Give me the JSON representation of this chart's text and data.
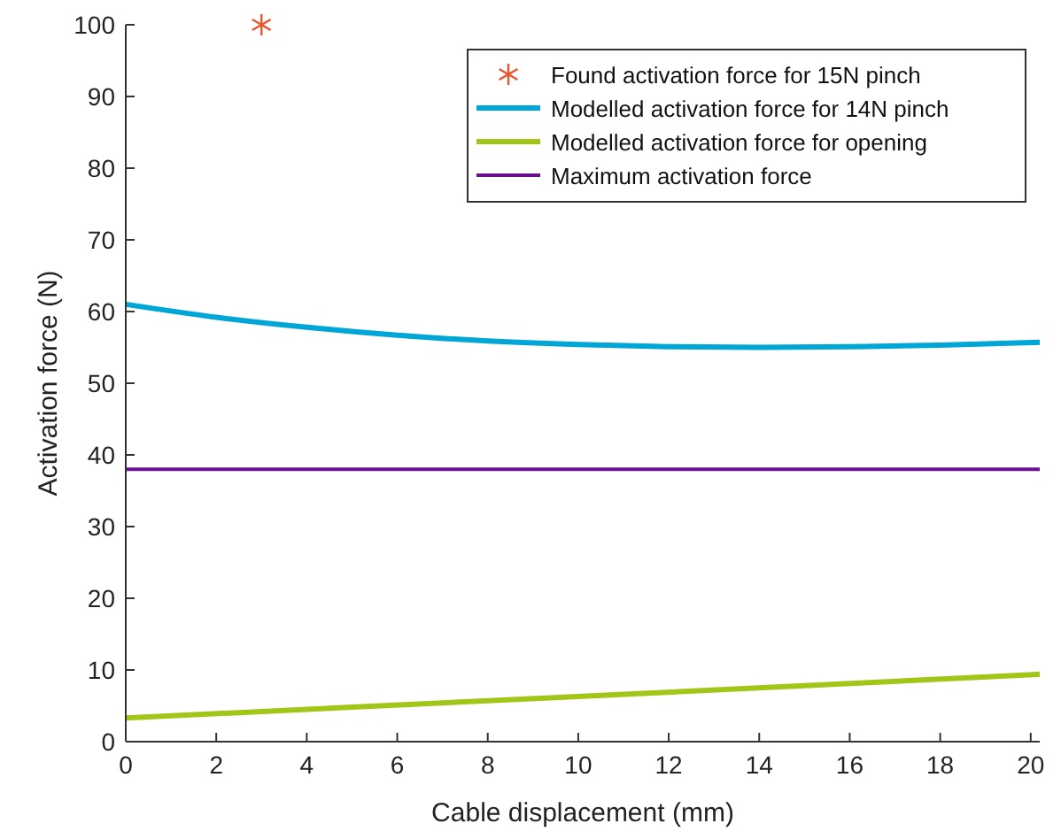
{
  "chart_data": {
    "type": "line",
    "xlabel": "Cable displacement (mm)",
    "ylabel": "Activation force (N)",
    "xlim": [
      0,
      20.2
    ],
    "xticks": [
      0,
      2,
      4,
      6,
      8,
      10,
      12,
      14,
      16,
      18,
      20
    ],
    "ylim": [
      0,
      100
    ],
    "yticks": [
      0,
      10,
      20,
      30,
      40,
      50,
      60,
      70,
      80,
      90,
      100
    ],
    "grid": false,
    "legend": "top right",
    "series": [
      {
        "name": "Found activation force for 15N pinch",
        "type": "scatter",
        "marker": "cross",
        "color": "#e8542b",
        "x": [
          3
        ],
        "values": [
          100
        ]
      },
      {
        "name": "Modelled activation force for 14N pinch",
        "color": "#00a6d6",
        "x": [
          0,
          2,
          4,
          6,
          8,
          10,
          12,
          14,
          16,
          18,
          20.2
        ],
        "values": [
          61,
          59.2,
          57.8,
          56.7,
          55.9,
          55.4,
          55.1,
          55,
          55.1,
          55.3,
          55.7
        ]
      },
      {
        "name": "Modelled activation force for opening",
        "color": "#a2c617",
        "x": [
          0,
          5,
          10,
          15,
          20.2
        ],
        "values": [
          3.3,
          4.8,
          6.3,
          7.8,
          9.4
        ]
      },
      {
        "name": "Maximum activation force",
        "color": "#6a0f8e",
        "x": [
          0,
          20.2
        ],
        "values": [
          38,
          38
        ]
      }
    ]
  }
}
